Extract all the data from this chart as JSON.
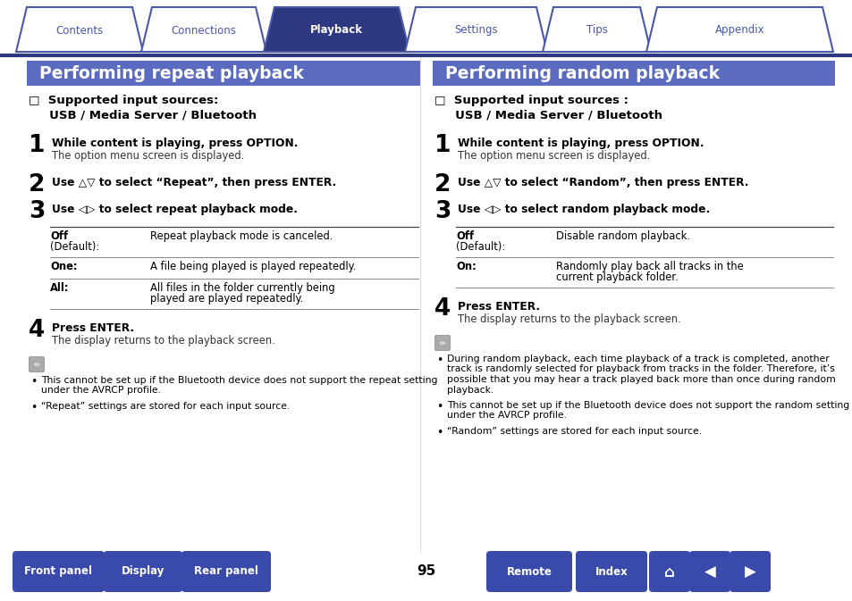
{
  "bg_color": "#ffffff",
  "section_header_bg": "#5b6bbf",
  "dark_blue": "#2e3880",
  "medium_blue": "#4a58a8",
  "button_bg": "#3a4aab",
  "tab_labels": [
    "Contents",
    "Connections",
    "Playback",
    "Settings",
    "Tips",
    "Appendix"
  ],
  "active_tab": 2,
  "left_title": "Performing repeat playback",
  "right_title": "Performing random playback",
  "footer_buttons": [
    "Front panel",
    "Display",
    "Rear panel",
    "Remote",
    "Index"
  ],
  "page_number": "95",
  "left_content": {
    "supported_line1": "□  Supported input sources:",
    "supported_line2": "     USB / Media Server / Bluetooth",
    "steps": [
      {
        "num": "1",
        "bold": "While content is playing, press OPTION.",
        "normal": "The option menu screen is displayed."
      },
      {
        "num": "2",
        "bold": "Use △▽ to select “Repeat”, then press ENTER.",
        "normal": ""
      },
      {
        "num": "3",
        "bold": "Use ◁▷ to select repeat playback mode.",
        "normal": ""
      }
    ],
    "table": [
      {
        "key1": "Off",
        "key2": "(Default):",
        "value": "Repeat playback mode is canceled.",
        "value2": ""
      },
      {
        "key1": "One:",
        "key2": "",
        "value": "A file being played is played repeatedly.",
        "value2": ""
      },
      {
        "key1": "All:",
        "key2": "",
        "value": "All files in the folder currently being",
        "value2": "played are played repeatedly."
      }
    ],
    "step4_bold": "Press ENTER.",
    "step4_normal": "The display returns to the playback screen.",
    "notes": [
      "This cannot be set up if the Bluetooth device does not support the repeat setting\nunder the AVRCP profile.",
      "“Repeat” settings are stored for each input source."
    ]
  },
  "right_content": {
    "supported_line1": "□  Supported input sources :",
    "supported_line2": "     USB / Media Server / Bluetooth",
    "steps": [
      {
        "num": "1",
        "bold": "While content is playing, press OPTION.",
        "normal": "The option menu screen is displayed."
      },
      {
        "num": "2",
        "bold": "Use △▽ to select “Random”, then press ENTER.",
        "normal": ""
      },
      {
        "num": "3",
        "bold": "Use ◁▷ to select random playback mode.",
        "normal": ""
      }
    ],
    "table": [
      {
        "key1": "Off",
        "key2": "(Default):",
        "value": "Disable random playback.",
        "value2": ""
      },
      {
        "key1": "On:",
        "key2": "",
        "value": "Randomly play back all tracks in the",
        "value2": "current playback folder."
      }
    ],
    "step4_bold": "Press ENTER.",
    "step4_normal": "The display returns to the playback screen.",
    "notes": [
      "During random playback, each time playback of a track is completed, another\ntrack is randomly selected for playback from tracks in the folder. Therefore, it’s\npossible that you may hear a track played back more than once during random\nplayback.",
      "This cannot be set up if the Bluetooth device does not support the random setting\nunder the AVRCP profile.",
      "“Random” settings are stored for each input source."
    ]
  }
}
